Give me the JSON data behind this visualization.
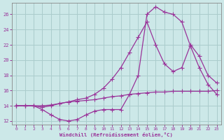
{
  "background_color": "#cce8e8",
  "grid_color": "#aacccc",
  "line_color": "#993399",
  "xlabel": "Windchill (Refroidissement éolien,°C)",
  "ylim": [
    11.5,
    27.5
  ],
  "xlim": [
    -0.5,
    23.5
  ],
  "yticks": [
    12,
    14,
    16,
    18,
    20,
    22,
    24,
    26
  ],
  "xticks": [
    0,
    1,
    2,
    3,
    4,
    5,
    6,
    7,
    8,
    9,
    10,
    11,
    12,
    13,
    14,
    15,
    16,
    17,
    18,
    19,
    20,
    21,
    22,
    23
  ],
  "curve1_x": [
    0,
    1,
    2,
    3,
    4,
    5,
    6,
    7,
    8,
    9,
    10,
    11,
    12,
    13,
    14,
    15,
    16,
    17,
    18,
    19,
    20,
    21,
    22,
    23
  ],
  "curve1_y": [
    14.0,
    14.0,
    14.0,
    13.5,
    12.8,
    12.2,
    12.0,
    12.2,
    12.8,
    13.3,
    13.5,
    13.5,
    13.5,
    15.5,
    18.0,
    26.0,
    27.0,
    26.3,
    26.0,
    25.0,
    21.8,
    19.0,
    16.8,
    15.5
  ],
  "curve2_x": [
    0,
    1,
    2,
    3,
    4,
    5,
    6,
    7,
    8,
    9,
    10,
    11,
    12,
    13,
    14,
    15,
    16,
    17,
    18,
    19,
    20,
    21,
    22,
    23
  ],
  "curve2_y": [
    14.0,
    14.0,
    14.0,
    13.8,
    14.0,
    14.3,
    14.5,
    14.8,
    15.0,
    15.5,
    16.3,
    17.5,
    19.0,
    21.0,
    23.0,
    25.0,
    22.0,
    19.5,
    18.5,
    19.0,
    22.0,
    20.5,
    18.0,
    17.0
  ],
  "curve3_x": [
    0,
    1,
    2,
    3,
    4,
    5,
    6,
    7,
    8,
    9,
    10,
    11,
    12,
    13,
    14,
    15,
    16,
    17,
    18,
    19,
    20,
    21,
    22,
    23
  ],
  "curve3_y": [
    14.0,
    14.0,
    14.0,
    14.0,
    14.1,
    14.3,
    14.5,
    14.6,
    14.7,
    14.8,
    15.0,
    15.2,
    15.3,
    15.5,
    15.6,
    15.7,
    15.8,
    15.8,
    15.9,
    15.9,
    15.9,
    15.9,
    15.9,
    16.0
  ]
}
